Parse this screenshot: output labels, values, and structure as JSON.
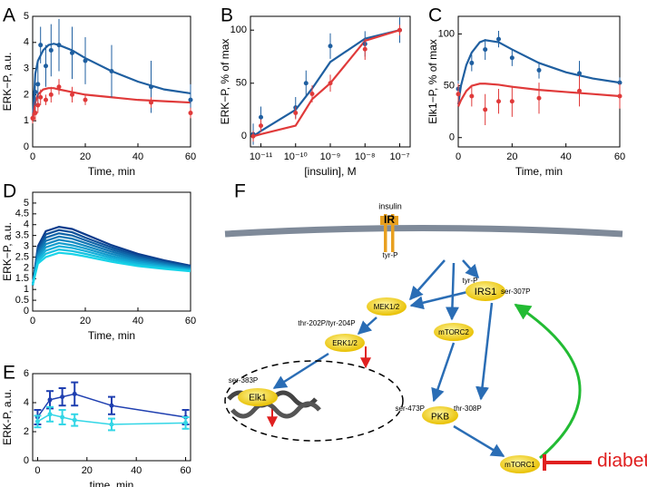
{
  "chart_data": [
    {
      "panel": "A",
      "type": "line",
      "xlabel": "Time, min",
      "ylabel": "ERK−P, a.u.",
      "xlim": [
        0,
        60
      ],
      "ylim": [
        0,
        5
      ],
      "xticks": [
        0,
        20,
        40,
        60
      ],
      "yticks": [
        0,
        1,
        2,
        3,
        4,
        5
      ],
      "series": [
        {
          "color": "#1f5fa0",
          "style": "line",
          "x": [
            0,
            1,
            2,
            4,
            6,
            8,
            10,
            15,
            20,
            30,
            40,
            50,
            60
          ],
          "values": [
            1.0,
            2.8,
            3.3,
            3.7,
            3.9,
            3.95,
            3.9,
            3.7,
            3.4,
            2.9,
            2.5,
            2.2,
            2.05
          ]
        },
        {
          "color": "#e03a3a",
          "style": "line",
          "x": [
            0,
            1,
            2,
            4,
            6,
            8,
            10,
            15,
            20,
            30,
            40,
            50,
            60
          ],
          "values": [
            1.0,
            1.7,
            2.0,
            2.2,
            2.25,
            2.25,
            2.2,
            2.1,
            2.0,
            1.9,
            1.8,
            1.75,
            1.7
          ]
        },
        {
          "color": "#1f5fa0",
          "style": "markers",
          "x": [
            1,
            2,
            3,
            5,
            7,
            10,
            15,
            20,
            30,
            45,
            60
          ],
          "values": [
            2.1,
            2.4,
            3.9,
            3.1,
            3.7,
            3.9,
            3.6,
            3.3,
            2.9,
            2.3,
            1.8
          ],
          "errors": [
            0.8,
            0.9,
            0.7,
            0.8,
            1.0,
            1.0,
            1.0,
            0.9,
            1.0,
            1.0,
            0.6
          ]
        },
        {
          "color": "#e03a3a",
          "style": "markers",
          "x": [
            0,
            1,
            2,
            3,
            5,
            7,
            10,
            15,
            20,
            45,
            60
          ],
          "values": [
            1.1,
            1.3,
            1.6,
            1.9,
            1.8,
            2.0,
            2.3,
            2.0,
            1.8,
            1.7,
            1.3
          ],
          "errors": [
            0.2,
            0.3,
            0.3,
            0.3,
            0.2,
            0.3,
            0.3,
            0.3,
            0.2,
            0.2,
            0.2
          ]
        }
      ]
    },
    {
      "panel": "B",
      "type": "line",
      "xlabel": "[insulin], M",
      "ylabel": "ERK−P, % of max",
      "xscale": "log",
      "xlim": [
        5e-12,
        2e-07
      ],
      "ylim": [
        -10,
        113
      ],
      "xticks": [
        {
          "value": 1e-11,
          "label": "10⁻¹¹"
        },
        {
          "value": 1e-10,
          "label": "10⁻¹⁰"
        },
        {
          "value": 1e-09,
          "label": "10⁻⁹"
        },
        {
          "value": 1e-08,
          "label": "10⁻⁸"
        },
        {
          "value": 1e-07,
          "label": "10⁻⁷"
        }
      ],
      "yticks": [
        0,
        50,
        100
      ],
      "series": [
        {
          "color": "#1f5fa0",
          "style": "line",
          "x": [
            6e-12,
            1e-11,
            1e-10,
            3e-10,
            1e-09,
            1e-08,
            1e-07
          ],
          "values": [
            0,
            5,
            25,
            45,
            70,
            92,
            100
          ]
        },
        {
          "color": "#e03a3a",
          "style": "line",
          "x": [
            6e-12,
            1e-11,
            1e-10,
            3e-10,
            1e-09,
            1e-08,
            1e-07
          ],
          "values": [
            0,
            2,
            10,
            35,
            50,
            90,
            100
          ]
        },
        {
          "color": "#1f5fa0",
          "style": "markers",
          "x": [
            6e-12,
            1e-11,
            1e-10,
            2e-10,
            1e-09,
            1e-08,
            1e-07
          ],
          "values": [
            2,
            18,
            27,
            50,
            85,
            87,
            100
          ],
          "errors": [
            10,
            10,
            10,
            12,
            12,
            12,
            12
          ]
        },
        {
          "color": "#e03a3a",
          "style": "markers",
          "x": [
            6e-12,
            1e-11,
            1e-10,
            3e-10,
            1e-09,
            1e-08,
            1e-07
          ],
          "values": [
            0,
            10,
            22,
            40,
            50,
            82,
            100
          ],
          "errors": [
            5,
            6,
            6,
            8,
            8,
            10,
            5
          ]
        }
      ]
    },
    {
      "panel": "C",
      "type": "line",
      "xlabel": "Time, min",
      "ylabel": "Elk1−P, % of max",
      "xlim": [
        0,
        60
      ],
      "ylim": [
        -9,
        117
      ],
      "xticks": [
        0,
        20,
        40,
        60
      ],
      "yticks": [
        0,
        50,
        100
      ],
      "series": [
        {
          "color": "#1f5fa0",
          "style": "line",
          "x": [
            0,
            1,
            3,
            5,
            8,
            10,
            15,
            20,
            30,
            40,
            50,
            60
          ],
          "values": [
            32,
            50,
            70,
            82,
            92,
            94,
            92,
            85,
            72,
            63,
            57,
            53
          ]
        },
        {
          "color": "#e03a3a",
          "style": "line",
          "x": [
            0,
            1,
            3,
            5,
            8,
            10,
            15,
            20,
            30,
            40,
            50,
            60
          ],
          "values": [
            30,
            36,
            45,
            50,
            52,
            52,
            51,
            49,
            46,
            44,
            42,
            40
          ]
        },
        {
          "color": "#1f5fa0",
          "style": "markers",
          "x": [
            0,
            5,
            10,
            15,
            20,
            30,
            45,
            60
          ],
          "values": [
            47,
            72,
            85,
            95,
            77,
            65,
            62,
            53
          ],
          "errors": [
            8,
            8,
            10,
            8,
            8,
            8,
            12,
            5
          ]
        },
        {
          "color": "#e03a3a",
          "style": "markers",
          "x": [
            0,
            5,
            10,
            15,
            20,
            30,
            45,
            60
          ],
          "values": [
            42,
            40,
            27,
            35,
            35,
            38,
            45,
            40
          ],
          "errors": [
            10,
            10,
            15,
            12,
            15,
            15,
            15,
            12
          ]
        }
      ]
    },
    {
      "panel": "D",
      "type": "line",
      "xlabel": "Time, min",
      "ylabel": "ERK−P, a.u.",
      "xlim": [
        0,
        60
      ],
      "ylim": [
        0,
        5.5
      ],
      "xticks": [
        0,
        20,
        40,
        60
      ],
      "yticks": [
        0,
        0.5,
        1,
        1.5,
        2,
        2.5,
        3,
        3.5,
        4,
        4.5,
        5
      ],
      "x": [
        0,
        2,
        5,
        10,
        15,
        20,
        30,
        40,
        50,
        60
      ],
      "series": [
        {
          "color": "#0b3c8c",
          "style": "line",
          "values": [
            1.2,
            3.0,
            3.7,
            3.9,
            3.8,
            3.55,
            3.05,
            2.65,
            2.35,
            2.1
          ]
        },
        {
          "color": "#0c4f99",
          "style": "line",
          "values": [
            1.2,
            2.9,
            3.55,
            3.75,
            3.65,
            3.4,
            2.95,
            2.57,
            2.3,
            2.07
          ]
        },
        {
          "color": "#0e62a6",
          "style": "line",
          "values": [
            1.2,
            2.8,
            3.4,
            3.6,
            3.5,
            3.28,
            2.85,
            2.5,
            2.25,
            2.03
          ]
        },
        {
          "color": "#0f75b3",
          "style": "line",
          "values": [
            1.2,
            2.7,
            3.25,
            3.45,
            3.35,
            3.15,
            2.75,
            2.43,
            2.2,
            2.0
          ]
        },
        {
          "color": "#1188c0",
          "style": "line",
          "values": [
            1.2,
            2.6,
            3.1,
            3.3,
            3.2,
            3.02,
            2.65,
            2.36,
            2.15,
            1.96
          ]
        },
        {
          "color": "#129bcc",
          "style": "line",
          "values": [
            1.2,
            2.5,
            2.95,
            3.15,
            3.05,
            2.9,
            2.55,
            2.29,
            2.1,
            1.93
          ]
        },
        {
          "color": "#14aed9",
          "style": "line",
          "values": [
            1.2,
            2.4,
            2.8,
            3.0,
            2.92,
            2.78,
            2.46,
            2.22,
            2.05,
            1.9
          ]
        },
        {
          "color": "#15c1e0",
          "style": "line",
          "values": [
            1.2,
            2.3,
            2.65,
            2.85,
            2.78,
            2.65,
            2.37,
            2.15,
            2.0,
            1.87
          ]
        },
        {
          "color": "#17d3e8",
          "style": "line",
          "values": [
            1.2,
            2.2,
            2.5,
            2.7,
            2.64,
            2.53,
            2.28,
            2.08,
            1.95,
            1.84
          ]
        }
      ]
    },
    {
      "panel": "E",
      "type": "line",
      "xlabel": "time, min",
      "ylabel": "ERK-P, a.u.",
      "caps": true,
      "xlim": [
        -2,
        62
      ],
      "ylim": [
        0,
        6
      ],
      "xticks": [
        0,
        20,
        40,
        60
      ],
      "yticks": [
        0,
        2,
        4,
        6
      ],
      "x": [
        0,
        5,
        10,
        15,
        30,
        60
      ],
      "series": [
        {
          "color": "#1f3fb0",
          "style": "line markers",
          "values": [
            3.0,
            4.2,
            4.4,
            4.6,
            3.8,
            3.0
          ],
          "errors": [
            0.5,
            0.6,
            0.6,
            0.8,
            0.6,
            0.5
          ]
        },
        {
          "color": "#33d6e6",
          "style": "line markers",
          "values": [
            2.7,
            3.2,
            3.0,
            2.8,
            2.5,
            2.6
          ],
          "errors": [
            0.4,
            0.5,
            0.5,
            0.4,
            0.4,
            0.4
          ]
        }
      ]
    }
  ],
  "diagram": {
    "panel": "F",
    "labels": [
      "insulin",
      "IR",
      "tyr-P",
      "tyr-P",
      "IRS1",
      "ser-307P",
      "MEK1/2",
      "mTORC2",
      "thr-202P/tyr-204P",
      "ERK1/2",
      "ser-383P",
      "Elk1",
      "ser-473P",
      "PKB",
      "thr-308P",
      "mTORC1",
      "diabetes"
    ]
  }
}
